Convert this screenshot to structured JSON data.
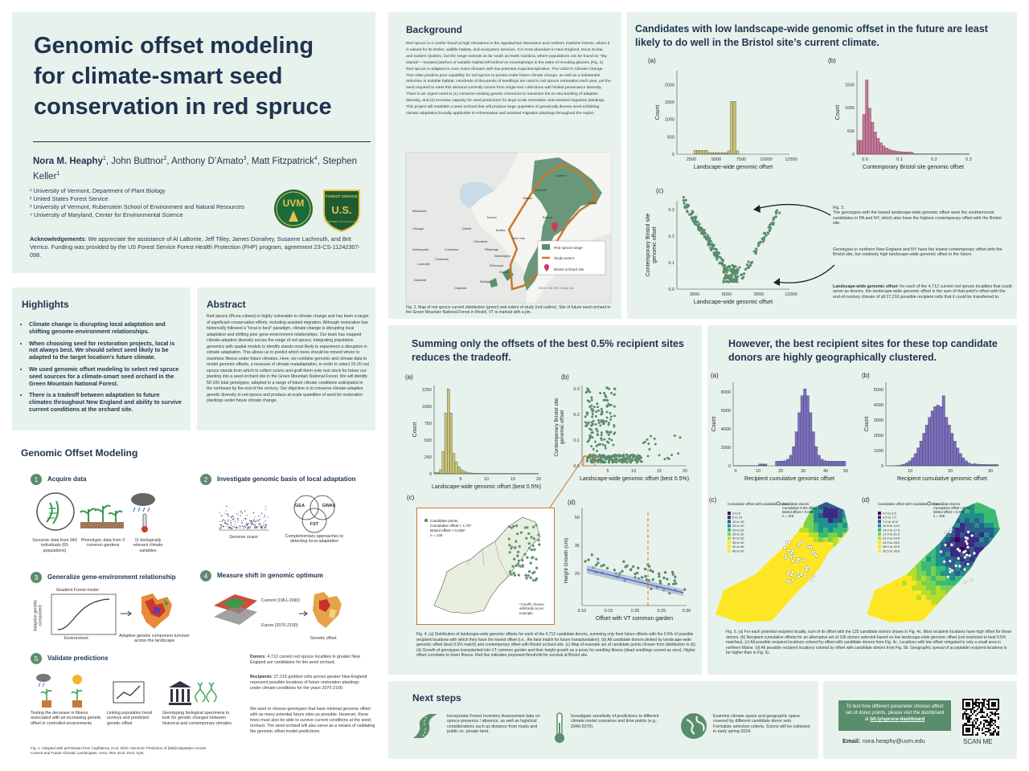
{
  "title": {
    "line1": "Genomic offset modeling",
    "line2": "for climate-smart seed",
    "line3": "conservation in red spruce"
  },
  "authors": {
    "a1": "Nora M. Heaphy",
    "s1": "1",
    "a2": "John Buttnor",
    "s2": "2",
    "a3": "Anthony D’Amato",
    "s3": "3",
    "a4": "Matt Fitzpatrick",
    "s4": "4",
    "a5": "Stephen Keller",
    "s5": "1"
  },
  "affiliations": [
    "¹ University of Vermont, Department of Plant Biology",
    "² United States Forest Service",
    "³ University of Vermont, Rubenstein School of Environment and Natural Resources",
    "⁴ University of Maryland, Center for Environmental Science"
  ],
  "logos": {
    "uvm": "UVM",
    "fs": "U.S.",
    "fs_top": "FOREST SERVICE",
    "fs_bottom": "DEPARTMENT OF AGRICULTURE"
  },
  "ack": {
    "label": "Acknowledgements",
    "text": ": We appreciate the assistance of Al LaBonte, Jeff Tilley, James Donahey, Susanne Lachmuth, and Brit Verrico. Funding was provided by the US Forest Service Forest Health Protection (FHP) program, agreement 23-CS-11242307-098."
  },
  "highlights": {
    "title": "Highlights",
    "items": [
      "Climate change is disrupting local adaptation and shifting genome-environment relationships.",
      "When choosing seed for restoration projects, local is not always best. We should select seed likely to be adapted to the target location’s future climate.",
      "We used genomic offset modeling to select red spruce seed sources for a climate-smart seed orchard in the Green Mountain National Forest.",
      "There is a tradeoff between adaptation to future climates throughout New England and ability to survive current conditions at the orchard site."
    ]
  },
  "abstract": {
    "title": "Abstract",
    "text": "Red spruce (Picea rubens) is highly vulnerable to climate change and has been a target of significant conservation efforts, including assisted migration. Although restoration has historically followed a \"local is best\" paradigm, climate change is disrupting local adaptation and shifting prior gene-environment relationships. Our team has mapped climate-adaptive diversity across the range of red spruce, integrating population genomics with spatial models to identify stands most likely to experience a disruption in climate adaptation. This allows us to predict which trees should be moved where to maximize fitness under future climates. Here, we combine genomic and climate data to model genomic offsets, a measure of climate maladaptation, in order to select 15-20 red spruce stands from which to collect scions and graft them onto root stock for future out-planting into a seed orchard site in the Green Mountain National Forest. We will identify 50-100 total genotypes, adapted to a range of future climate conditions anticipated in the northeast by the end of the century. Our objective is to conserve climate-adaptive genetic diversity in red spruce and produce at-scale quantities of seed for restoration plantings under future climate change."
  },
  "gom": {
    "title": "Genomic Offset Modeling",
    "s1": {
      "num": "1",
      "title": "Acquire data",
      "c1": "Genomic data from 340 individuals (65 populations)",
      "c2": "Phenotypic data from 3 common gardens",
      "c3": "11 biologically relevant climate variables"
    },
    "s2": {
      "num": "2",
      "title": "Investigate genomic basis of local adaptation",
      "c1": "Genome scans",
      "c2": "Complementary approaches to detecting local adaptation",
      "v1": "GEA",
      "v2": "GWAS",
      "v3": "FST"
    },
    "s3": {
      "num": "3",
      "title": "Generalize gene-environment relationship",
      "gf": "Gradient Forest model",
      "ylab": "Adaptive genetic component",
      "xlab": "Environment",
      "c": "Adaptive genetic component turnover across the landscape"
    },
    "s4": {
      "num": "4",
      "title": "Measure shift in genomic optimum",
      "cur": "Current (1961-1990)",
      "fut": "Future (2070-2100)",
      "c": "Genetic offset"
    },
    "s5": {
      "num": "5",
      "title": "Validate predictions",
      "c1": "Testing the decrease in fitness associated with an increasing genetic offset in controlled environments",
      "c2": "Linking population trend surveys and predicted genetic offset",
      "c3": "Genotyping biological specimens to look for genetic changes between historical and contemporary climates"
    },
    "donors_label": "Donors",
    "donors": ": 4,712 current red spruce localities in greater New England are candidates for the seed orchard.",
    "recip_label": "Recipients",
    "recip": ": 27,216 gridded cells across greater New England represent possible locations of future restoration plantings under climate conditions for the years 2070-2100.",
    "want": "We want to choose genotypes that have minimal genomic offset with as many potential future sites as possible. However, these trees must also be able to survive current conditions at the seed orchard. The seed orchard will also serve as a means of validating the genomic offset model predictions.",
    "fig1": "Fig. 1. Adapted with permission from Capblancq, et al. 2020. Genomic Prediction of (Mal)Adaptation Across Current and Future Climatic Landscapes. Annu. Rev. Ecol. Evol. Syst."
  },
  "background": {
    "title": "Background",
    "text": "Red spruce is a conifer found at high elevations in the Appalachian Mountains and northern maritime forests, where it is valued for its timber, wildlife habitat, and ecosystem services. It is most abundant in New England, Nova Scotia, and eastern Quebec, but the range extends as far south as North Carolina, where populations can be found on \"sky islands\"—isolated patches of suitable habitat left behind on mountaintops in the wake of receding glaciers (Fig. 2). Red spruce is adapted to cool, moist climates with low potential evapotranspiration. The USDA's Climate Change Tree Atlas predicts poor capability for red spruce to persist under future climate change, as well as a substantial reduction in suitable habitat. Hundreds of thousands of seedlings are used in red spruce restoration each year, yet the seed required to meet this demand currently comes from single-tree collections with limited provenance diversity. There is an urgent need to (1) conserve existing genetic resources to maximize the ex-situ banking of adaptive diversity, and (2) increase capacity for seed production for large-scale restoration and assisted migration plantings. This project will establish a seed orchard that will produce large quantities of genetically diverse seed exhibiting climate adaptation broadly applicable to reforestation and assisted migration plantings throughout the region.",
    "legend1": "Red spruce range",
    "legend2": "Study extent",
    "legend3": "Bristol orchard site",
    "cities": [
      "Toronto",
      "Ottawa",
      "Montreal",
      "Quebec",
      "Buffalo",
      "Detroit",
      "Cleveland",
      "Columbus",
      "Pittsburgh",
      "Cincinnati",
      "Indianapolis",
      "Louisville",
      "Nashville",
      "Charlotte",
      "Raleigh",
      "Washington",
      "Richmond",
      "Norfolk",
      "New York",
      "Boston",
      "Halifax",
      "Milwaukee",
      "Chicago"
    ],
    "credit": "USGS, FAO, NPS, NOAA, Esri",
    "fig2": "Fig. 2. Map of red spruce current distribution (green) and extent of study (red outline). Site of future seed orchard in the Green Mountain National Forest in Bristol, VT is marked with a pin."
  },
  "fig3": {
    "title": "Candidates with low landscape-wide genomic offset in the future are least likely to do well in the Bristol site’s current climate.",
    "la": "(a)",
    "lb": "(b)",
    "lc": "(c)",
    "count": "Count",
    "xa": "Landscape-wide genomic offset",
    "xb": "Contemporary Bristol site genomic offset",
    "yc1": "Contemporary Bristol site",
    "yc2": "genomic offset",
    "xc": "Landscape-wide genomic offset",
    "a_ticks_x": [
      "2500",
      "5000",
      "7500",
      "10000",
      "12500"
    ],
    "a_ticks_y": [
      "0",
      "500",
      "1000",
      "1500",
      "2000"
    ],
    "b_ticks_x": [
      "0.0",
      "0.1",
      "0.2",
      "0.3"
    ],
    "b_ticks_y": [
      "0",
      "500",
      "1000",
      "1500"
    ],
    "c_ticks_x": [
      "3000",
      "6000",
      "9000",
      "12000"
    ],
    "c_ticks_y": [
      "0.0",
      "0.1",
      "0.2",
      "0.3"
    ],
    "note1": "Fig. 3.\nThe genotypes with the lowest landscape-wide genomic offset were the southernmost candidates in PA and NY, which also have the highest contemporary offset with the Bristol site.",
    "note2": "Genotypes in northern New England and NY have the lowest contemporary offset with the Bristol site, but relatively high landscape-wide genomic offset in the future.",
    "note3_label": "Landscape-wide genomic offset",
    "note3": ": for each of the 4,712 current red spruce localities that could serve as donors, the landscape-wide genomic offset is the sum of that point’s offset with the end-of-century climate of all 27,216 possible recipient cells that it could be transferred to."
  },
  "fig4": {
    "title": "Summing only the offsets of the best 0.5% recipient sites reduces the tradeoff.",
    "la": "(a)",
    "lb": "(b)",
    "lc": "(c)",
    "ld": "(d)",
    "count": "Count",
    "xa": "Landscape-wide genomic offset (best 0.5%)",
    "xb": "Landscape-wide genomic offset (best 0.5%)",
    "yb1": "Contemporary Bristol site",
    "yb2": "genomic offset",
    "a_ticks_y": [
      "0",
      "250",
      "500",
      "750",
      "1000",
      "1250"
    ],
    "a_ticks_x": [
      "5",
      "10",
      "15",
      "20"
    ],
    "b_ticks_x": [
      "5",
      "10",
      "15",
      "20"
    ],
    "b_ticks_y": [
      "0.0",
      "0.1",
      "0.2",
      "0.3"
    ],
    "c_leg1": "Candidate points",
    "c_leg2": "Cumulative offset < 1.75*",
    "c_leg3": "Bristol offset < 0.035*",
    "c_leg4": "n = 125",
    "c_note": "*Cutoffs chosen arbitrarily as an example.",
    "yd": "Height Growth (cm)",
    "xd": "Offset with VT common garden",
    "d_ticks_x": [
      "0.10",
      "0.15",
      "0.20",
      "0.25",
      "0.30"
    ],
    "d_ticks_y": [
      "20",
      "35",
      "50"
    ],
    "caption": "Fig. 4. (a) Distribution of landscape-wide genomic offsets for each of the 4,712 candidate donors, summing only their future offsets with the 0.5% of possible recipient locations with which they have the lowest offset (i.e., the best match for future transplantation). (b) All candidate donors plotted by landscape-wide genomic offset (best 0.5% match) and contemporary offset with Bristol orchard site. (c) Map of example set of candidate points chosen from distribution in (b). (d) Growth of genotypes transplanted into VT common garden and their height growth as a proxy for seedling fitness (dead seedlings scored as zero). Higher offset correlates to lower fitness. Red line indicates proposed threshold for survival at Bristol site."
  },
  "fig5": {
    "title": "However, the best recipient sites for these top candidate donors are highly geographically clustered.",
    "la": "(a)",
    "lb": "(b)",
    "lc": "(c)",
    "ld": "(d)",
    "count": "Count",
    "xa": "Recipient cumulative genomic offset",
    "xb": "Recipient cumulative genomic offset",
    "a_ticks_y": [
      "0",
      "2000",
      "4000",
      "6000",
      "8000"
    ],
    "a_ticks_x": [
      "0",
      "10",
      "20",
      "30",
      "40",
      "50"
    ],
    "b_ticks_y": [
      "0",
      "1000",
      "2000",
      "3000",
      "4000",
      "5000"
    ],
    "b_ticks_x": [
      "10",
      "20",
      "30"
    ],
    "c_leg_title": "Cumulative offset with candidate donors",
    "c_leg": [
      "0 to 5",
      "5 to 10",
      "10 to 15",
      "15 to 20",
      "20 to 25",
      "25 to 30",
      "30 to 35",
      "35 to 40",
      "40 to 45",
      "45 to 50"
    ],
    "c_cand": "Candidate donors",
    "c_cand2": "Cumulative 0.5% offset < 1.75",
    "c_cand3": "Bristol offset < 0.035",
    "c_cand4": "n = 125",
    "d_leg": [
      "0.0 to 3.5",
      "3.5 to 7.0",
      "7.0 to 10.5",
      "10.5 to 14.0",
      "14.0 to 17.5",
      "17.5 to 21.0",
      "21.0 to 24.5",
      "24.5 to 28.0",
      "28.0 to 32.5",
      "32.5 to 35.0"
    ],
    "d_cand2": "Cumulative offset < 6250",
    "d_cand3": "Bristol offset < 0.035",
    "d_cand4": "n = 106",
    "caption": "Fig. 5. (a) For each potential recipient locality, sum of its offset with the 125 candidate donors shown in Fig. 4c. Most recipient locations have high offset for these donors. (b) Recipient cumulative offsets for an alternative set of 106 donors selected based on low landscape-wide genomic offset (not restricted to best 0.5% matches). (c) All possible recipient locations colored by offset with candidate donors from Fig. 4c. Locations with low offset relegated to only a small area in northern Maine. (d) All possible recipient locations colored by offset with candidate donors from Fig. 5b. Geographic spread of acceptable recipient locations is far higher than in Fig. 5c."
  },
  "next": {
    "title": "Next steps",
    "i1": "Incorporate Forest Inventory Assessment data on spruce presence / absence, as well as logistical considerations such as distance from roads and public vs. private land.",
    "i2": "Investigate sensitivity of predictions to different climate model scenarios and time points (e.g., 2040-2070).",
    "i3": "Examine climate space and geographic space covered by different candidate donor sets. Formalize selection criteria. Scions will be collected in early spring 2024."
  },
  "contact": {
    "dash1": "To test how different parameter choices affect set of donor points, please visit the dashboard at ",
    "link": "bit.ly/spruce-dashboard",
    "email_label": "Email: ",
    "email": "nora.heaphy@uvm.edu",
    "scan": "SCAN ME"
  },
  "colors": {
    "bg": "#e8f2ec",
    "navy": "#1f3350",
    "olive": "#c7c47a",
    "pink": "#c9779a",
    "purple": "#7b6fc0",
    "green": "#5a8d6c",
    "orange": "#c8782c"
  }
}
